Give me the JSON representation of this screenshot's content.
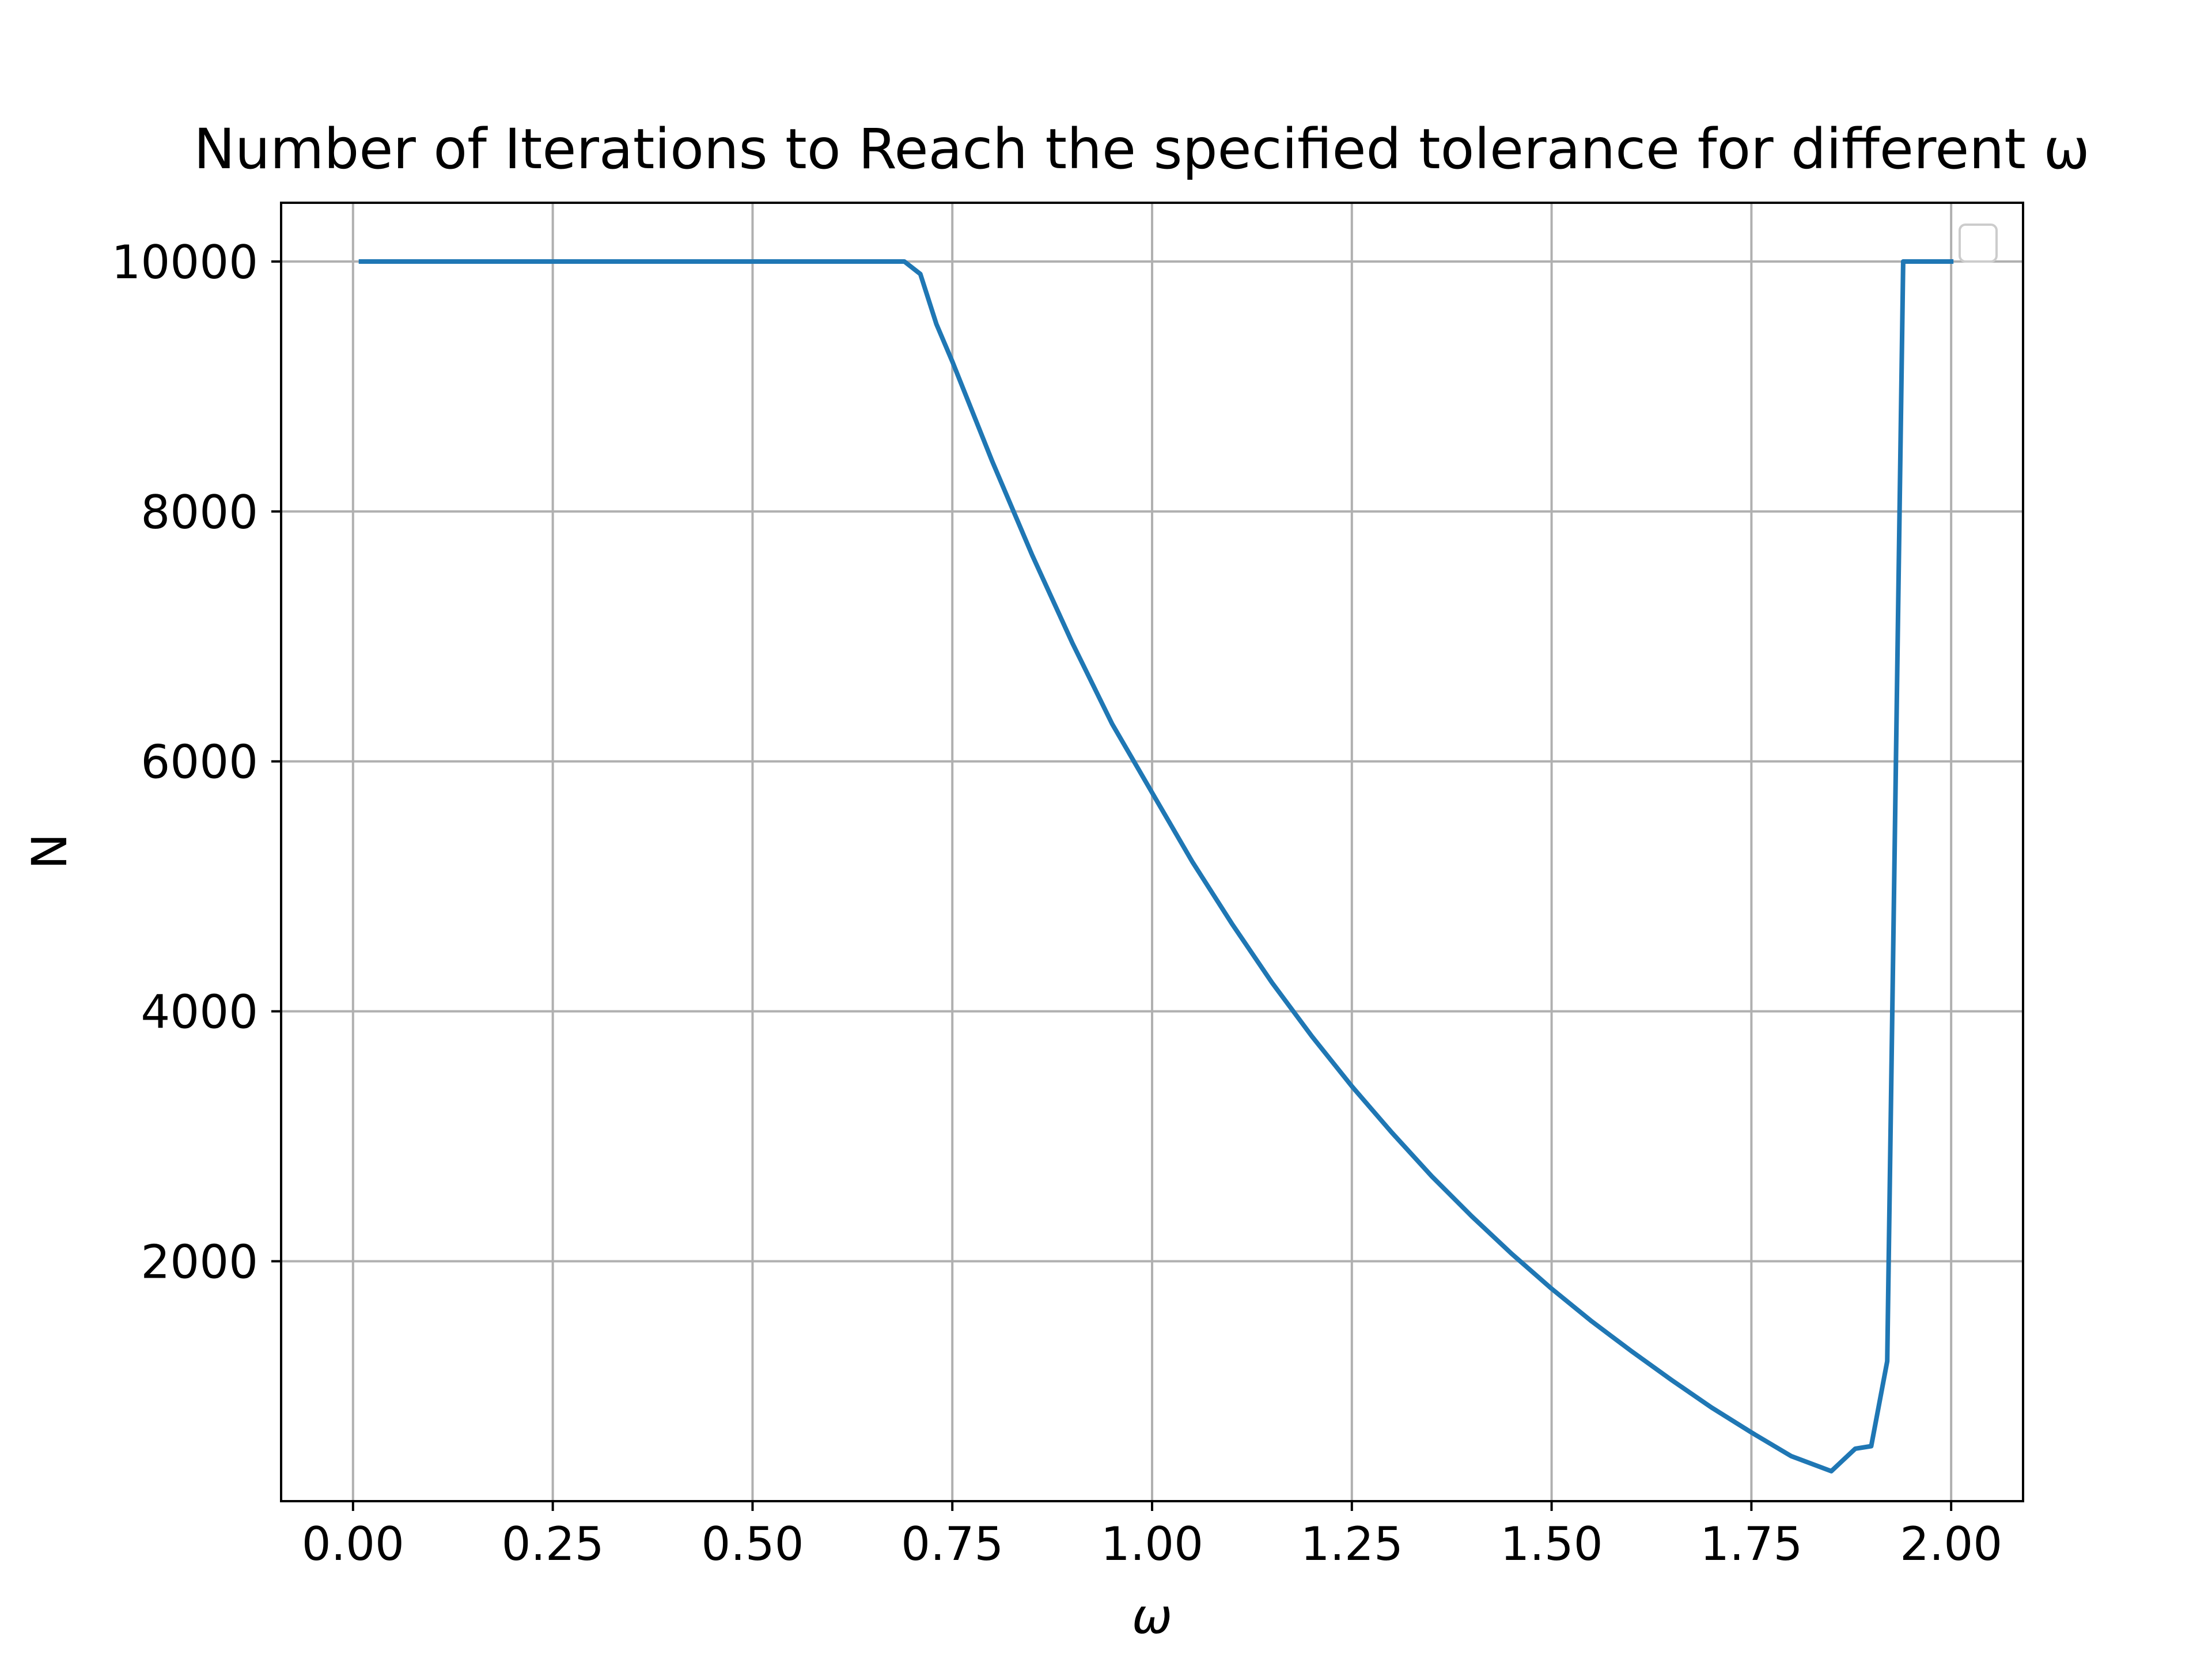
{
  "chart_data": {
    "type": "line",
    "title": "Number of Iterations to Reach the specified tolerance for different ω",
    "xlabel": "ω",
    "ylabel": "N",
    "xlim": [
      -0.09,
      2.09
    ],
    "ylim": [
      80,
      10470
    ],
    "grid": true,
    "legend": {
      "placement": "upper right",
      "entries": []
    },
    "x_ticks": [
      0.0,
      0.25,
      0.5,
      0.75,
      1.0,
      1.25,
      1.5,
      1.75,
      2.0
    ],
    "x_tick_labels": [
      "0.00",
      "0.25",
      "0.50",
      "0.75",
      "1.00",
      "1.25",
      "1.50",
      "1.75",
      "2.00"
    ],
    "y_ticks": [
      2000,
      4000,
      6000,
      8000,
      10000
    ],
    "y_tick_labels": [
      "2000",
      "4000",
      "6000",
      "8000",
      "10000"
    ],
    "colors": {
      "line": "#1f77b4",
      "grid": "#b0b0b0",
      "axes": "#000000"
    },
    "series": [
      {
        "x": [
          0.01,
          0.1,
          0.2,
          0.3,
          0.4,
          0.5,
          0.6,
          0.69,
          0.71,
          0.73,
          0.75,
          0.8,
          0.85,
          0.9,
          0.95,
          1.0,
          1.05,
          1.1,
          1.15,
          1.2,
          1.25,
          1.3,
          1.35,
          1.4,
          1.45,
          1.5,
          1.55,
          1.6,
          1.65,
          1.7,
          1.75,
          1.8,
          1.85,
          1.88,
          1.9,
          1.92,
          1.94,
          1.96,
          1.98,
          2.0
        ],
        "y": [
          10000,
          10000,
          10000,
          10000,
          10000,
          10000,
          10000,
          10000,
          9900,
          9500,
          9200,
          8400,
          7650,
          6950,
          6300,
          5750,
          5200,
          4700,
          4230,
          3800,
          3400,
          3030,
          2680,
          2360,
          2060,
          1780,
          1520,
          1280,
          1050,
          830,
          630,
          440,
          320,
          500,
          520,
          1200,
          10000,
          10000,
          10000,
          10000
        ]
      }
    ]
  }
}
